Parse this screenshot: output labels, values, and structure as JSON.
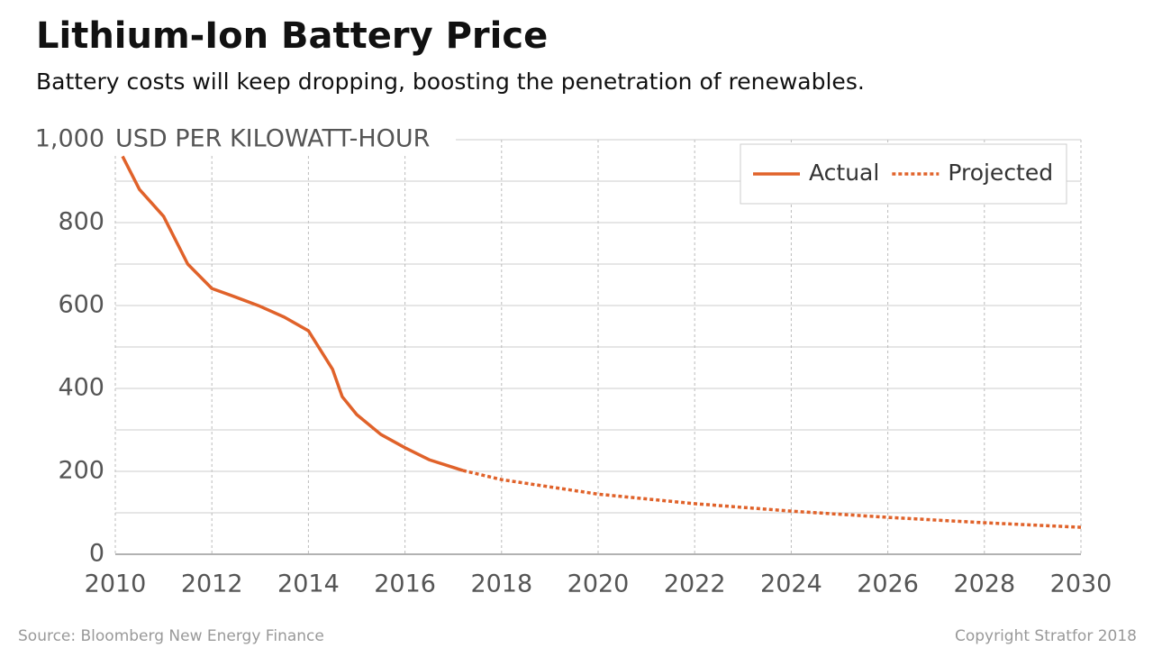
{
  "chart_data": {
    "type": "line",
    "title": "Lithium-Ion Battery Price",
    "subtitle": "Battery costs will keep dropping, boosting the penetration of renewables.",
    "y_axis_label": "USD PER KILOWATT-HOUR",
    "source": "Source: Bloomberg New Energy Finance",
    "copyright": "Copyright Stratfor 2018",
    "series": [
      {
        "name": "Actual",
        "color": "#e0622a",
        "dashed": false,
        "x": [
          2010.15,
          2010.5,
          2011,
          2011.5,
          2012,
          2012.5,
          2013,
          2013.5,
          2014,
          2014.5,
          2014.7,
          2015,
          2015.5,
          2016,
          2016.5,
          2017.2
        ],
        "values": [
          960,
          880,
          815,
          700,
          641,
          620,
          598,
          572,
          539,
          446,
          380,
          337,
          289,
          257,
          228,
          202
        ]
      },
      {
        "name": "Projected",
        "color": "#e0622a",
        "dashed": true,
        "x": [
          2017.2,
          2018,
          2020,
          2022,
          2024,
          2026,
          2028,
          2030
        ],
        "values": [
          202,
          180,
          145,
          122,
          104,
          89,
          76,
          65
        ]
      }
    ],
    "xlim": [
      2010,
      2030
    ],
    "xticks": [
      2010,
      2012,
      2014,
      2016,
      2018,
      2020,
      2022,
      2024,
      2026,
      2028,
      2030
    ],
    "ylim": [
      0,
      1000
    ],
    "yticks": [
      0,
      200,
      400,
      600,
      800,
      {
        "value": 1000,
        "label": "1,000"
      }
    ],
    "y_minor_grid": [
      100,
      300,
      500,
      700,
      900
    ],
    "grid": true,
    "legend": "top-right"
  }
}
